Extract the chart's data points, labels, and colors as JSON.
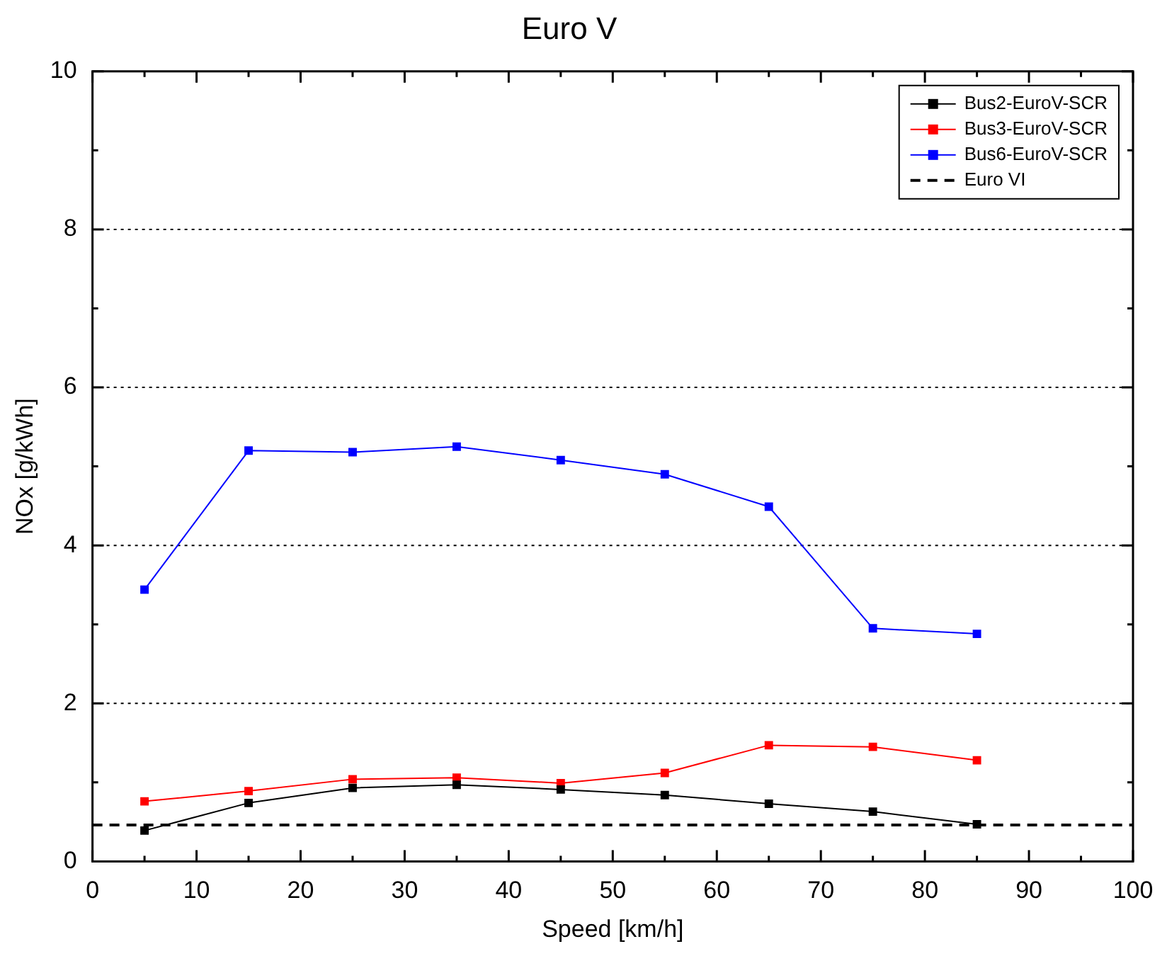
{
  "chart_data": {
    "type": "line",
    "title": "Euro V",
    "xlabel": "Speed [km/h]",
    "ylabel": "NOx [g/kWh]",
    "x": [
      5,
      15,
      25,
      35,
      45,
      55,
      65,
      75,
      85
    ],
    "series": [
      {
        "name": "Bus2-EuroV-SCR",
        "color": "#000000",
        "values": [
          0.39,
          0.74,
          0.93,
          0.97,
          0.91,
          0.84,
          0.73,
          0.63,
          0.47
        ]
      },
      {
        "name": "Bus3-EuroV-SCR",
        "color": "#ff0000",
        "values": [
          0.76,
          0.89,
          1.04,
          1.06,
          0.99,
          1.12,
          1.47,
          1.45,
          1.28
        ]
      },
      {
        "name": "Bus6-EuroV-SCR",
        "color": "#0000ff",
        "values": [
          3.44,
          5.2,
          5.18,
          5.25,
          5.08,
          4.9,
          4.49,
          2.95,
          2.88
        ]
      },
      {
        "name": "Euro VI",
        "color": "#000000",
        "x": [
          0,
          100
        ],
        "values": [
          0.46,
          0.46
        ],
        "marker": "none",
        "line_style": "dashed"
      }
    ],
    "xlim": [
      0,
      100
    ],
    "ylim": [
      0,
      10
    ],
    "xticks": [
      0,
      {
        "value": 5,
        "label": null
      },
      10,
      {
        "value": 15,
        "label": null
      },
      20,
      {
        "value": 25,
        "label": null
      },
      30,
      {
        "value": 35,
        "label": null
      },
      40,
      {
        "value": 45,
        "label": null
      },
      50,
      {
        "value": 55,
        "label": null
      },
      60,
      {
        "value": 65,
        "label": null
      },
      70,
      {
        "value": 75,
        "label": null
      },
      80,
      {
        "value": 85,
        "label": null
      },
      90,
      {
        "value": 95,
        "label": null
      },
      100
    ],
    "yticks": [
      0,
      {
        "value": 1,
        "label": null
      },
      2,
      {
        "value": 3,
        "label": null
      },
      4,
      {
        "value": 5,
        "label": null
      },
      6,
      {
        "value": 7,
        "label": null
      },
      8,
      {
        "value": 9,
        "label": null
      },
      10
    ],
    "grid": "y",
    "legend": "top right",
    "marker": "square",
    "line_style": "solid"
  }
}
